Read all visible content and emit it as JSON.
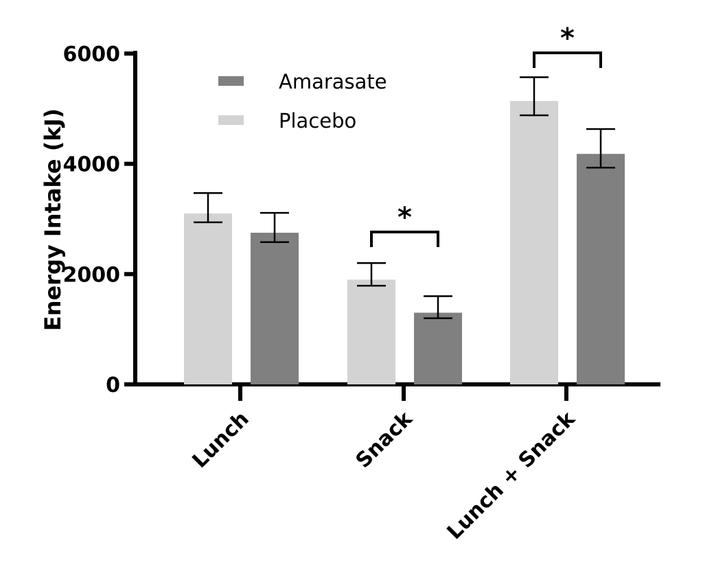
{
  "chart_data": {
    "type": "bar",
    "title": "",
    "xlabel": "",
    "ylabel": "Energy Intake (kJ)",
    "ylim": [
      0,
      6000
    ],
    "yticks": [
      "0",
      "2000",
      "4000",
      "6000"
    ],
    "categories": [
      "Lunch",
      "Snack",
      "Lunch + Snack"
    ],
    "series": [
      {
        "name": "Placebo",
        "color": "#d3d3d3",
        "values": [
          3100,
          1900,
          5140
        ],
        "error_upper": [
          3470,
          2200,
          5570
        ],
        "error_lower": [
          2940,
          1790,
          4880
        ]
      },
      {
        "name": "Amarasate",
        "color": "#808080",
        "values": [
          2750,
          1300,
          4180
        ],
        "error_upper": [
          3110,
          1600,
          4630
        ],
        "error_lower": [
          2580,
          1200,
          3930
        ]
      }
    ],
    "legend": {
      "placement": "top-left",
      "order": [
        "Amarasate",
        "Placebo"
      ]
    },
    "annotations": [
      {
        "category": "Snack",
        "text": "*"
      },
      {
        "category": "Lunch + Snack",
        "text": "*"
      }
    ],
    "grid": false
  }
}
